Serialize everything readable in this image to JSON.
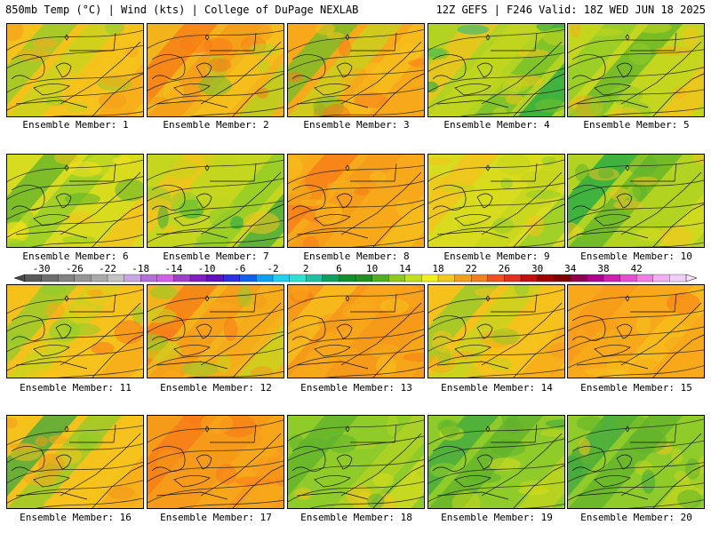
{
  "header": {
    "left": "850mb Temp (°C) | Wind (kts) | College of DuPage NEXLAB",
    "right": "12Z GEFS | F246 Valid: 18Z WED JUN 18 2025"
  },
  "label_prefix": "Ensemble Member: ",
  "members": [
    {
      "id": "1",
      "base": "#f5c21c",
      "ramp": [
        "#8fcc2a",
        "#c4d61e",
        "#f5c21c",
        "#f7a91a",
        "#f59a19"
      ]
    },
    {
      "id": "2",
      "base": "#f2b31b",
      "ramp": [
        "#f77a18",
        "#f59a19",
        "#f5c21c",
        "#b3d322",
        "#6fbf2b"
      ]
    },
    {
      "id": "3",
      "base": "#f7a91a",
      "ramp": [
        "#6fbf2b",
        "#c4d61e",
        "#f5c21c",
        "#f7a91a",
        "#f77a18"
      ]
    },
    {
      "id": "4",
      "base": "#b3d322",
      "ramp": [
        "#f5c21c",
        "#c4d61e",
        "#6fbf2b",
        "#1aa84a",
        "#19b98d"
      ]
    },
    {
      "id": "5",
      "base": "#c4d61e",
      "ramp": [
        "#8fcc2a",
        "#5fb32b",
        "#c4d61e",
        "#f5c21c",
        "#f2b31b"
      ]
    },
    {
      "id": "6",
      "base": "#d8dc1e",
      "ramp": [
        "#5fb32b",
        "#8fcc2a",
        "#d8dc1e",
        "#f5c21c",
        "#f5e11c"
      ]
    },
    {
      "id": "7",
      "base": "#c4d61e",
      "ramp": [
        "#f5c21c",
        "#c4d61e",
        "#8fcc2a",
        "#3da840",
        "#1aa84a"
      ]
    },
    {
      "id": "8",
      "base": "#f7a91a",
      "ramp": [
        "#f77a18",
        "#f59a19",
        "#f7a91a",
        "#f5c21c",
        "#f2b31b"
      ]
    },
    {
      "id": "9",
      "base": "#d8dc1e",
      "ramp": [
        "#f5c21c",
        "#d8dc1e",
        "#c4d61e",
        "#8fcc2a",
        "#3da840"
      ]
    },
    {
      "id": "10",
      "base": "#b3d322",
      "ramp": [
        "#1aa84a",
        "#5fb32b",
        "#b3d322",
        "#d8dc1e",
        "#f5c21c"
      ]
    },
    {
      "id": "11",
      "base": "#f5c21c",
      "ramp": [
        "#8fcc2a",
        "#c4d61e",
        "#f5c21c",
        "#f7a91a",
        "#f77a18"
      ]
    },
    {
      "id": "12",
      "base": "#f2b31b",
      "ramp": [
        "#f77a18",
        "#f59a19",
        "#f7a91a",
        "#c4d61e",
        "#8fcc2a"
      ]
    },
    {
      "id": "13",
      "base": "#f59a19",
      "ramp": [
        "#f5c21c",
        "#f7a91a",
        "#f59a19",
        "#f7a91a",
        "#f77a18"
      ]
    },
    {
      "id": "14",
      "base": "#f5c21c",
      "ramp": [
        "#8fcc2a",
        "#c4d61e",
        "#f5c21c",
        "#f7a91a",
        "#f59a19"
      ]
    },
    {
      "id": "15",
      "base": "#f7a91a",
      "ramp": [
        "#f59a19",
        "#f7a91a",
        "#f5c21c",
        "#f7a91a",
        "#f77a18"
      ]
    },
    {
      "id": "16",
      "base": "#f5c21c",
      "ramp": [
        "#3da840",
        "#8fcc2a",
        "#f5c21c",
        "#f7a91a",
        "#f59a19"
      ]
    },
    {
      "id": "17",
      "base": "#f59a19",
      "ramp": [
        "#f77a18",
        "#f59a19",
        "#f7a91a",
        "#f7a91a",
        "#f59a19"
      ]
    },
    {
      "id": "18",
      "base": "#8fcc2a",
      "ramp": [
        "#5fb32b",
        "#8fcc2a",
        "#b3d322",
        "#d8dc1e",
        "#f5c21c"
      ]
    },
    {
      "id": "19",
      "base": "#8fcc2a",
      "ramp": [
        "#3da840",
        "#5fb32b",
        "#8fcc2a",
        "#c4d61e",
        "#d8dc1e"
      ]
    },
    {
      "id": "20",
      "base": "#8fcc2a",
      "ramp": [
        "#3da840",
        "#5fb32b",
        "#8fcc2a",
        "#c4d61e",
        "#f5c21c"
      ]
    }
  ],
  "colorbar": {
    "labels": [
      "-30",
      "-26",
      "-22",
      "-18",
      "-14",
      "-10",
      "-6",
      "-2",
      "2",
      "6",
      "10",
      "14",
      "18",
      "22",
      "26",
      "30",
      "34",
      "38",
      "42"
    ],
    "colors": [
      "#5a5a5a",
      "#6e6e6e",
      "#828282",
      "#969696",
      "#aaaaaa",
      "#c4c4c4",
      "#c8a8e0",
      "#b070d8",
      "#d060e8",
      "#a040c8",
      "#8020c0",
      "#6010c0",
      "#3030e0",
      "#1060f0",
      "#10a0f0",
      "#20d0f0",
      "#30e0d0",
      "#20c0a0",
      "#10a060",
      "#109030",
      "#209020",
      "#50b020",
      "#90c820",
      "#c0e020",
      "#f0f020",
      "#f0c820",
      "#f0a020",
      "#f08020",
      "#f05020",
      "#e03020",
      "#c01010",
      "#a00000",
      "#800000",
      "#900050",
      "#b00090",
      "#d020b0",
      "#e050d0",
      "#f080e0",
      "#f0b0f0",
      "#f0d0f8"
    ]
  }
}
